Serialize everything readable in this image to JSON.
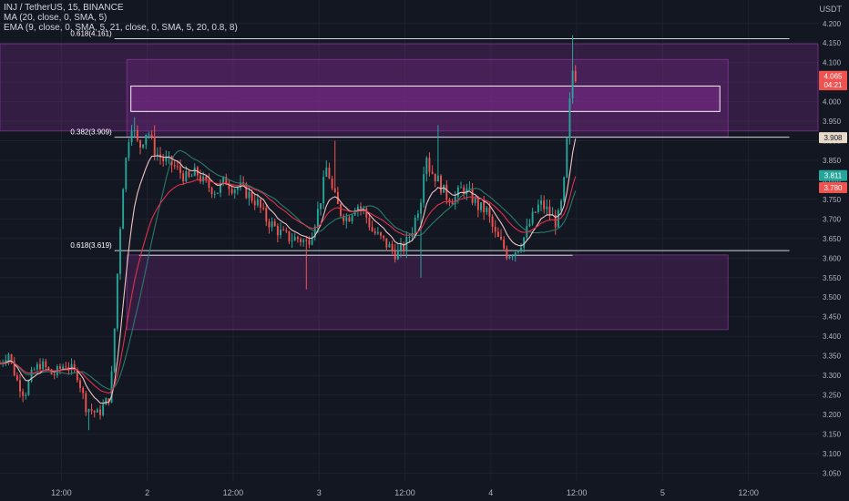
{
  "header": {
    "symbol_line": "INJ / TetherUS, 15, BINANCE",
    "ma_line": "MA (20, close, 0, SMA, 5)",
    "ema_line": "EMA (9, close, 0, SMA, 5, 21, close, 0, SMA, 5, 20, 0.8, 8)",
    "currency": "USDT"
  },
  "colors": {
    "background": "#131722",
    "up": "#26a69a",
    "down": "#ef5350",
    "ma": "#2a7a6a",
    "ema_fast": "#f2c2c2",
    "ema_slow": "#e0304a",
    "zone_fill": "#7a2a8a",
    "zone_border": "#a040b0",
    "level_line": "#d1d4dc",
    "axis_text": "#b2b5be"
  },
  "chart_data": {
    "type": "candlestick",
    "ylim": [
      3.03,
      4.26
    ],
    "x_range": [
      0,
      200
    ],
    "y_ticks": [
      "3.050",
      "3.100",
      "3.150",
      "3.200",
      "3.250",
      "3.300",
      "3.350",
      "3.400",
      "3.450",
      "3.500",
      "3.550",
      "3.600",
      "3.650",
      "3.700",
      "3.750",
      "3.800",
      "3.850",
      "3.900",
      "3.950",
      "4.000",
      "4.050",
      "4.100",
      "4.150",
      "4.200"
    ],
    "x_ticks": [
      {
        "label": "12:00",
        "x": 15
      },
      {
        "label": "2",
        "x": 36
      },
      {
        "label": "12:00",
        "x": 57
      },
      {
        "label": "3",
        "x": 78
      },
      {
        "label": "12:00",
        "x": 99
      },
      {
        "label": "4",
        "x": 120
      },
      {
        "label": "12:00",
        "x": 141
      },
      {
        "label": "5",
        "x": 162
      },
      {
        "label": "12:00",
        "x": 183
      }
    ],
    "anchors": [
      {
        "x": 0,
        "p": 3.33
      },
      {
        "x": 2,
        "p": 3.36
      },
      {
        "x": 4,
        "p": 3.29
      },
      {
        "x": 6,
        "p": 3.25
      },
      {
        "x": 8,
        "p": 3.31
      },
      {
        "x": 10,
        "p": 3.33
      },
      {
        "x": 13,
        "p": 3.3
      },
      {
        "x": 16,
        "p": 3.33
      },
      {
        "x": 19,
        "p": 3.3
      },
      {
        "x": 21,
        "p": 3.22
      },
      {
        "x": 24,
        "p": 3.2
      },
      {
        "x": 27,
        "p": 3.25
      },
      {
        "x": 28,
        "p": 3.42
      },
      {
        "x": 29,
        "p": 3.62
      },
      {
        "x": 30,
        "p": 3.78
      },
      {
        "x": 31,
        "p": 3.87
      },
      {
        "x": 32,
        "p": 3.95
      },
      {
        "x": 34,
        "p": 3.88
      },
      {
        "x": 36,
        "p": 3.93
      },
      {
        "x": 38,
        "p": 3.87
      },
      {
        "x": 40,
        "p": 3.85
      },
      {
        "x": 42,
        "p": 3.84
      },
      {
        "x": 44,
        "p": 3.82
      },
      {
        "x": 46,
        "p": 3.8
      },
      {
        "x": 48,
        "p": 3.82
      },
      {
        "x": 50,
        "p": 3.79
      },
      {
        "x": 53,
        "p": 3.77
      },
      {
        "x": 55,
        "p": 3.8
      },
      {
        "x": 57,
        "p": 3.78
      },
      {
        "x": 59,
        "p": 3.78
      },
      {
        "x": 61,
        "p": 3.76
      },
      {
        "x": 63,
        "p": 3.74
      },
      {
        "x": 65,
        "p": 3.7
      },
      {
        "x": 67,
        "p": 3.68
      },
      {
        "x": 69,
        "p": 3.66
      },
      {
        "x": 71,
        "p": 3.65
      },
      {
        "x": 73,
        "p": 3.65
      },
      {
        "x": 75,
        "p": 3.64
      },
      {
        "x": 76,
        "p": 3.66
      },
      {
        "x": 78,
        "p": 3.73
      },
      {
        "x": 80,
        "p": 3.84
      },
      {
        "x": 81,
        "p": 3.78
      },
      {
        "x": 83,
        "p": 3.72
      },
      {
        "x": 85,
        "p": 3.7
      },
      {
        "x": 87,
        "p": 3.74
      },
      {
        "x": 89,
        "p": 3.72
      },
      {
        "x": 91,
        "p": 3.67
      },
      {
        "x": 93,
        "p": 3.65
      },
      {
        "x": 95,
        "p": 3.63
      },
      {
        "x": 97,
        "p": 3.61
      },
      {
        "x": 99,
        "p": 3.63
      },
      {
        "x": 101,
        "p": 3.68
      },
      {
        "x": 103,
        "p": 3.76
      },
      {
        "x": 104,
        "p": 3.88
      },
      {
        "x": 105,
        "p": 3.83
      },
      {
        "x": 107,
        "p": 3.8
      },
      {
        "x": 109,
        "p": 3.76
      },
      {
        "x": 111,
        "p": 3.75
      },
      {
        "x": 113,
        "p": 3.78
      },
      {
        "x": 115,
        "p": 3.76
      },
      {
        "x": 117,
        "p": 3.73
      },
      {
        "x": 119,
        "p": 3.72
      },
      {
        "x": 121,
        "p": 3.66
      },
      {
        "x": 123,
        "p": 3.63
      },
      {
        "x": 124,
        "p": 3.61
      },
      {
        "x": 126,
        "p": 3.62
      },
      {
        "x": 128,
        "p": 3.65
      },
      {
        "x": 130,
        "p": 3.7
      },
      {
        "x": 132,
        "p": 3.74
      },
      {
        "x": 134,
        "p": 3.72
      },
      {
        "x": 136,
        "p": 3.69
      },
      {
        "x": 137,
        "p": 3.72
      },
      {
        "x": 138,
        "p": 3.8
      },
      {
        "x": 139,
        "p": 3.96
      },
      {
        "x": 140,
        "p": 4.08
      },
      {
        "x": 141,
        "p": 4.06
      }
    ],
    "spikes": [
      {
        "x": 33,
        "high": 3.96
      },
      {
        "x": 38,
        "high": 3.94
      },
      {
        "x": 75,
        "low": 3.52
      },
      {
        "x": 82,
        "high": 3.9
      },
      {
        "x": 107,
        "high": 3.94
      },
      {
        "x": 103,
        "low": 3.55
      },
      {
        "x": 140,
        "high": 4.17
      },
      {
        "x": 22,
        "low": 3.16
      }
    ],
    "moving_averages": [
      {
        "name": "MA 20",
        "color": "#2a7a6a",
        "period": 20
      },
      {
        "name": "EMA 9",
        "color": "#f2c2c2",
        "period": 9
      },
      {
        "name": "EMA 21",
        "color": "#e0304a",
        "period": 21
      }
    ],
    "fibonacci": [
      {
        "label": "0.618(4.161)",
        "price": 4.161,
        "x_start": 28,
        "x_end": 193
      },
      {
        "label": "0.382(3.909)",
        "price": 3.909,
        "x_start": 28,
        "x_end": 193
      },
      {
        "label": "0.618(3.619)",
        "price": 3.619,
        "x_start": 28,
        "x_end": 193
      }
    ],
    "zones": [
      {
        "x_start": 0,
        "x_end": 200,
        "top": 4.148,
        "bottom": 3.925,
        "fill_opacity": 0.32
      },
      {
        "x_start": 31,
        "x_end": 178,
        "top": 4.108,
        "bottom": 3.91,
        "fill_opacity": 0.28
      },
      {
        "x_start": 32,
        "x_end": 176,
        "top": 4.04,
        "bottom": 3.975,
        "fill_opacity": 0.55,
        "outlined": true
      },
      {
        "x_start": 31,
        "x_end": 178,
        "top": 3.608,
        "bottom": 3.417,
        "fill_opacity": 0.3
      },
      {
        "x_start": 34,
        "x_end": 140,
        "top": 3.607,
        "bottom": 3.603,
        "fill_opacity": 0.0,
        "line": true
      }
    ],
    "price_labels": [
      {
        "text": "4.065",
        "price": 4.065,
        "bg": "#ef5350",
        "color": "#ffffff"
      },
      {
        "text": "04:21",
        "price": 4.043,
        "bg": "#ef5350",
        "color": "#ffffff"
      },
      {
        "text": "3.908",
        "price": 3.908,
        "bg": "#e8d9c9",
        "color": "#131722"
      },
      {
        "text": "3.811",
        "price": 3.811,
        "bg": "#26a69a",
        "color": "#ffffff"
      },
      {
        "text": "3.780",
        "price": 3.78,
        "bg": "#ef5350",
        "color": "#ffffff"
      }
    ]
  }
}
